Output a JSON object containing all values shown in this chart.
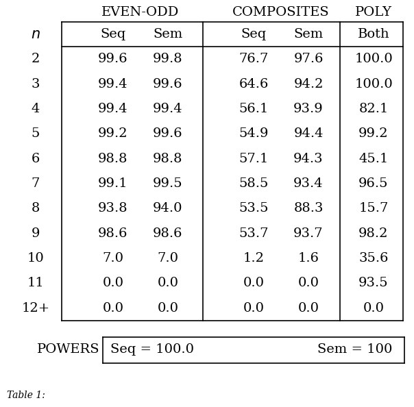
{
  "background_color": "#ffffff",
  "group_headers": [
    "EVEN-ODD",
    "COMPOSITES",
    "POLY"
  ],
  "col_headers": [
    "Seq",
    "Sem",
    "Seq",
    "Sem",
    "Both"
  ],
  "n_labels": [
    "2",
    "3",
    "4",
    "5",
    "6",
    "7",
    "8",
    "9",
    "10",
    "11",
    "12+"
  ],
  "table_data": [
    [
      "99.6",
      "99.8",
      "76.7",
      "97.6",
      "100.0"
    ],
    [
      "99.4",
      "99.6",
      "64.6",
      "94.2",
      "100.0"
    ],
    [
      "99.4",
      "99.4",
      "56.1",
      "93.9",
      "82.1"
    ],
    [
      "99.2",
      "99.6",
      "54.9",
      "94.4",
      "99.2"
    ],
    [
      "98.8",
      "98.8",
      "57.1",
      "94.3",
      "45.1"
    ],
    [
      "99.1",
      "99.5",
      "58.5",
      "93.4",
      "96.5"
    ],
    [
      "93.8",
      "94.0",
      "53.5",
      "88.3",
      "15.7"
    ],
    [
      "98.6",
      "98.6",
      "53.7",
      "93.7",
      "98.2"
    ],
    [
      "7.0",
      "7.0",
      "1.2",
      "1.6",
      "35.6"
    ],
    [
      "0.0",
      "0.0",
      "0.0",
      "0.0",
      "93.5"
    ],
    [
      "0.0",
      "0.0",
      "0.0",
      "0.0",
      "0.0"
    ]
  ],
  "powers_label": "POWERS",
  "powers_seq": "Seq = 100.0",
  "powers_sem": "Sem = 100",
  "font_size": 14,
  "small_font_size": 11
}
